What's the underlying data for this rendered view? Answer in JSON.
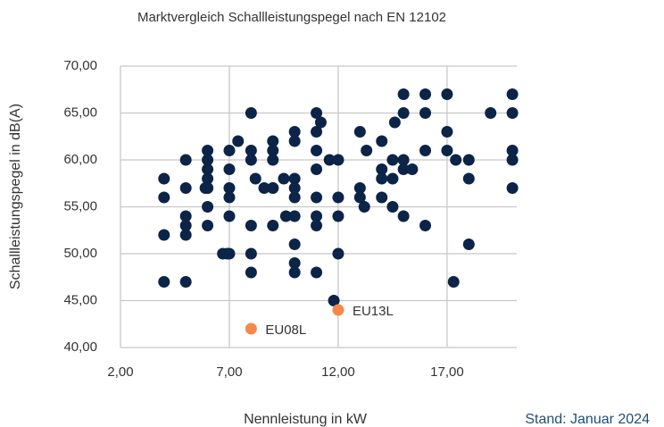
{
  "chart_data": {
    "type": "scatter",
    "title": "Marktvergleich Schallleistungspegel nach EN 12102",
    "x_label": "Nennleistung in kW",
    "y_label": "Schallleistungspegel in dB(A)",
    "note": "Stand: Januar 2024",
    "xlim": [
      2,
      20.2
    ],
    "ylim": [
      40,
      70
    ],
    "xticks": [
      {
        "value": 2,
        "label": "2,00"
      },
      {
        "value": 7,
        "label": "7,00"
      },
      {
        "value": 12,
        "label": "12,00"
      },
      {
        "value": 17,
        "label": "17,00"
      }
    ],
    "yticks": [
      {
        "value": 40,
        "label": "40,00"
      },
      {
        "value": 45,
        "label": "45,00"
      },
      {
        "value": 50,
        "label": "50,00"
      },
      {
        "value": 55,
        "label": "55,00"
      },
      {
        "value": 60,
        "label": "60,00"
      },
      {
        "value": 65,
        "label": "65,00"
      },
      {
        "value": 70,
        "label": "70,00"
      }
    ],
    "grid": true,
    "series": [
      {
        "color": "#0b2447",
        "x": [
          4,
          4,
          4,
          4,
          5,
          5,
          5,
          5,
          5,
          5,
          5.9,
          6,
          6,
          6,
          6,
          6,
          6,
          6,
          6,
          6.7,
          6.9,
          7,
          7,
          7,
          7,
          7,
          7,
          7.4,
          8,
          8,
          8,
          8,
          8,
          8,
          8.2,
          8.6,
          9,
          9,
          9,
          9,
          9,
          9,
          9.5,
          9.6,
          10,
          10,
          10,
          10,
          10,
          10,
          10,
          10,
          10,
          11,
          11,
          11,
          11,
          11,
          11,
          11,
          11,
          11.2,
          11.6,
          11.8,
          12,
          12,
          12,
          12,
          13,
          13,
          13,
          13.2,
          13.3,
          14,
          14,
          14,
          14,
          14.5,
          14.5,
          14.5,
          14.6,
          15,
          15,
          15,
          15,
          15,
          15.4,
          16,
          16,
          16,
          16,
          17,
          17,
          17,
          17.3,
          17.4,
          18,
          18,
          18,
          19,
          20,
          20,
          20,
          20,
          20
        ],
        "y": [
          58,
          56,
          52,
          47,
          60,
          57,
          54,
          53,
          52,
          47,
          57,
          53,
          61,
          60,
          59,
          58,
          57,
          55,
          57,
          50,
          50,
          50,
          61,
          59,
          57,
          56,
          54,
          62,
          65,
          61,
          60,
          53,
          50,
          48,
          58,
          57,
          57,
          62,
          61,
          60,
          53,
          57,
          58,
          54,
          63,
          62,
          58,
          57,
          56,
          54,
          51,
          49,
          48,
          65,
          63,
          61,
          59,
          56,
          54,
          53,
          48,
          64,
          60,
          45,
          60,
          56,
          54,
          50,
          63,
          57,
          56,
          55,
          61,
          62,
          59,
          58,
          56,
          60,
          58,
          55,
          64,
          67,
          65,
          60,
          59,
          54,
          59,
          67,
          65,
          61,
          53,
          67,
          63,
          61,
          47,
          60,
          60,
          58,
          51,
          65,
          67,
          65,
          61,
          60,
          57
        ]
      },
      {
        "color": "#f5884a",
        "x": [
          8,
          12
        ],
        "y": [
          42,
          44
        ],
        "labels": [
          "EU08L",
          "EU13L"
        ]
      }
    ]
  }
}
